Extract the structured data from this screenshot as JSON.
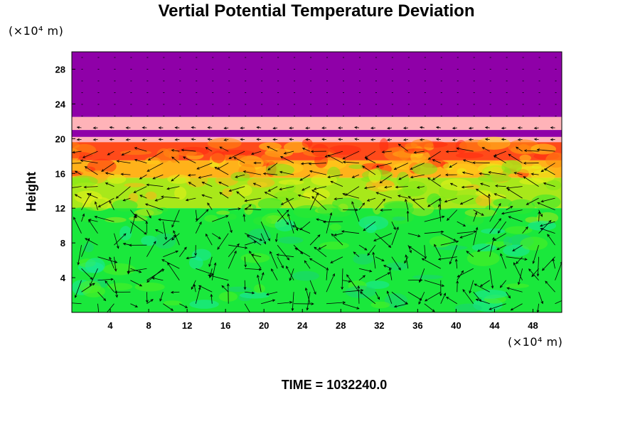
{
  "chart_data": {
    "type": "heatmap",
    "title": "Vertial Potential Temperature Deviation",
    "ylabel": "Height",
    "y_unit": "(×10⁴ m)",
    "x_unit": "(×10⁴ m)",
    "footer": "TIME = 1032240.0",
    "xlim": [
      0,
      51
    ],
    "ylim": [
      0,
      30
    ],
    "x_ticks": [
      4,
      8,
      12,
      16,
      20,
      24,
      28,
      32,
      36,
      40,
      44,
      48
    ],
    "y_ticks": [
      4,
      8,
      12,
      16,
      20,
      24,
      28
    ],
    "layers": [
      {
        "y0": 22.5,
        "y1": 30,
        "color": "#8f00a8"
      },
      {
        "y0": 21,
        "y1": 22.5,
        "color": "#ffb3b8"
      },
      {
        "y0": 20.2,
        "y1": 21,
        "color": "#8f00a8"
      },
      {
        "y0": 19.6,
        "y1": 20.2,
        "color": "#ffb3b8"
      },
      {
        "y0": 17.5,
        "y1": 19.6,
        "color": "#ff4a1a"
      },
      {
        "y0": 15.5,
        "y1": 17.5,
        "color": "#ffb21a"
      },
      {
        "y0": 12,
        "y1": 15.5,
        "color": "#a8e81a"
      },
      {
        "y0": 0,
        "y1": 12,
        "color": "#1ae83c"
      }
    ],
    "vectors_present": true
  }
}
